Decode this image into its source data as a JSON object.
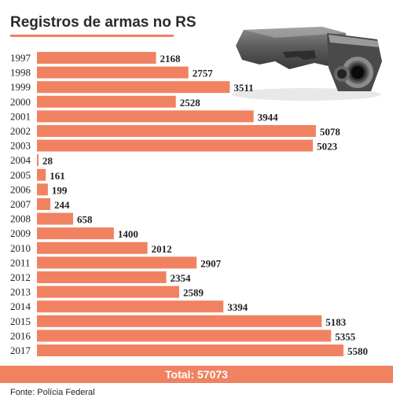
{
  "colors": {
    "bar": "#f08262",
    "accent": "#f08262",
    "text": "#222222"
  },
  "icons": {
    "gun": "pistol-image"
  },
  "total_label": "Total: 57073",
  "source": "Fonte: Polícia Federal",
  "chart_data": {
    "type": "bar",
    "orientation": "horizontal",
    "title": "Registros de armas no RS",
    "categories": [
      "1997",
      "1998",
      "1999",
      "2000",
      "2001",
      "2002",
      "2003",
      "2004",
      "2005",
      "2006",
      "2007",
      "2008",
      "2009",
      "2010",
      "2011",
      "2012",
      "2013",
      "2014",
      "2015",
      "2016",
      "2017"
    ],
    "values": [
      2168,
      2757,
      3511,
      2528,
      3944,
      5078,
      5023,
      28,
      161,
      199,
      244,
      658,
      1400,
      2012,
      2907,
      2354,
      2589,
      3394,
      5183,
      5355,
      5580
    ],
    "value_labels": [
      "2168",
      "2757",
      "3511",
      "2528",
      "3944",
      "5078",
      "5023",
      "28",
      "161",
      "199",
      "244",
      "658",
      "1400",
      "2012",
      "2907",
      "2354",
      "2589",
      "3394",
      "5183",
      "5355",
      "5580"
    ],
    "xlim": [
      0,
      5580
    ],
    "grid": false,
    "legend": "none"
  }
}
